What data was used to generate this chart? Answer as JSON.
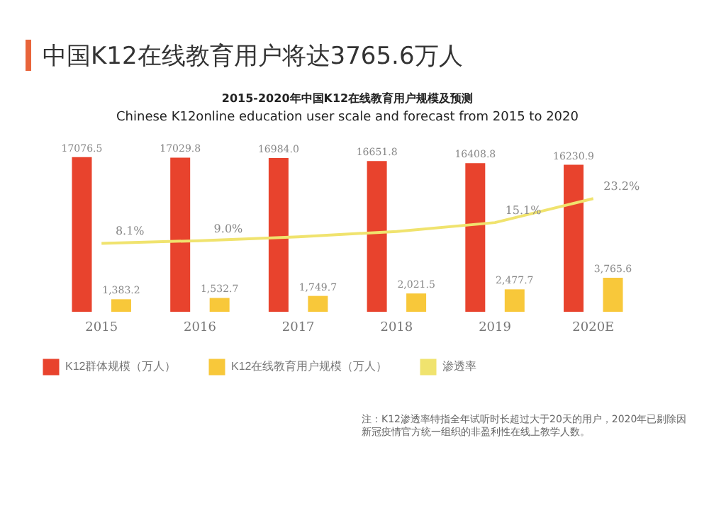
{
  "chart_data": {
    "type": "bar",
    "title": "中国K12在线教育用户将达3765.6万人",
    "subtitle": "2015-2020年中国K12在线教育用户规模及预测",
    "annotations": [
      "Chinese K12online education user scale and forecast from 2015 to 2020",
      "注：K12渗透率特指全年试听时长超过大于20天的用户，2020年已剔除因新冠疫情官方统一组织的非盈利性在线上教学人数。"
    ],
    "categories": [
      "2015",
      "2016",
      "2017",
      "2018",
      "2019",
      "2020E"
    ],
    "series": [
      {
        "name": "K12群体规模（万人）",
        "color": "#e8432d",
        "values": [
          17076.5,
          17029.8,
          16984.0,
          16651.8,
          16408.8,
          16230.9
        ],
        "value_labels": [
          "17076.5",
          "17029.8",
          "16984.0",
          "16651.8",
          "16408.8",
          "16230.9"
        ]
      },
      {
        "name": "K12在线教育用户规模（万人）",
        "color": "#f8c83a",
        "values": [
          1383.2,
          1532.7,
          1749.7,
          2021.5,
          2477.7,
          3765.6
        ],
        "value_labels": [
          "1,383.2",
          "1,532.7",
          "1,749.7",
          "2,021.5",
          "2,477.7",
          "3,765.6"
        ]
      },
      {
        "name": "渗透率",
        "type": "line",
        "axis": "y2",
        "color": "#f0e36e",
        "values": [
          8.1,
          9.0,
          10.3,
          12.1,
          15.1,
          23.2
        ],
        "value_labels": [
          "8.1%",
          "9.0%",
          null,
          null,
          "15.1%",
          "23.2%"
        ]
      }
    ],
    "legend": "bottom"
  }
}
